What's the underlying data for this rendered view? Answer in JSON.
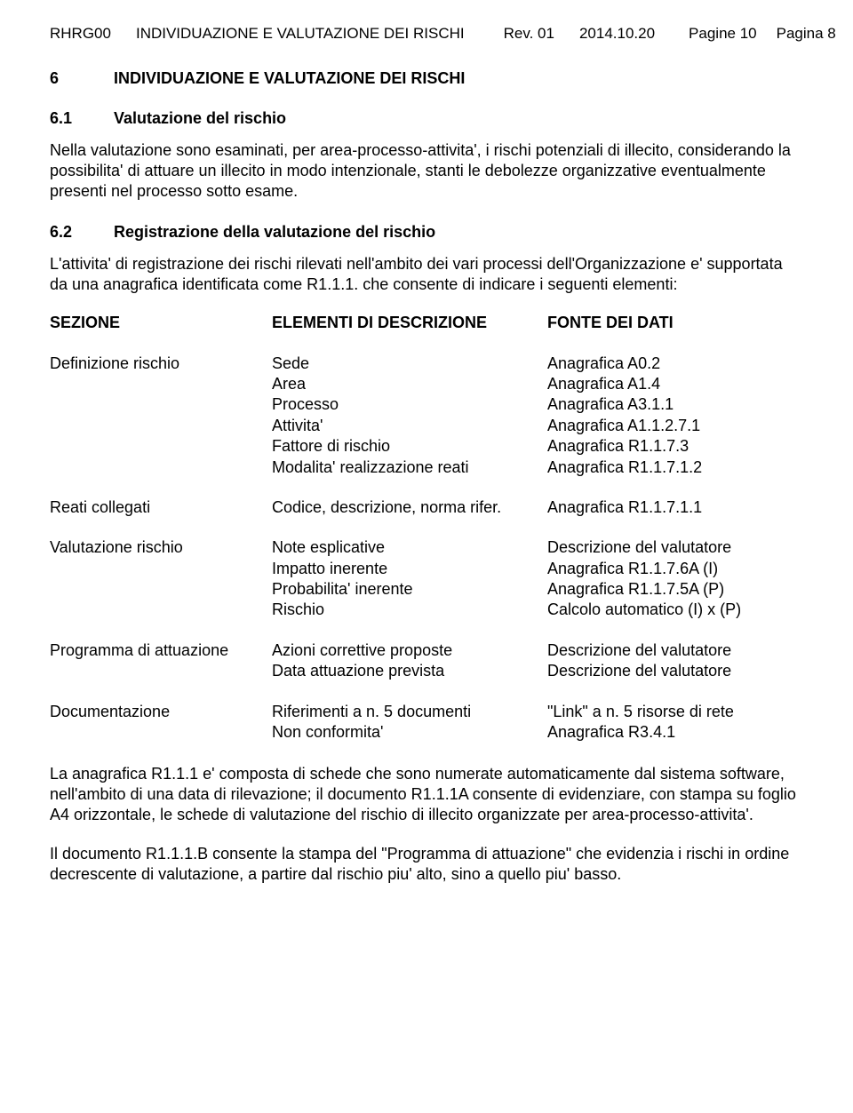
{
  "header": {
    "doc_code": "RHRG00",
    "doc_title": "INDIVIDUAZIONE E VALUTAZIONE DEI RISCHI",
    "rev": "Rev. 01",
    "date": "2014.10.20",
    "pagine": "Pagine 10",
    "pagina": "Pagina 8"
  },
  "section6": {
    "num": "6",
    "title": "INDIVIDUAZIONE E VALUTAZIONE DEI RISCHI"
  },
  "section61": {
    "num": "6.1",
    "title": "Valutazione del rischio",
    "para": "Nella valutazione sono esaminati, per area-processo-attivita', i rischi potenziali di illecito, considerando la possibilita' di attuare un illecito in modo intenzionale, stanti le debolezze organizzative eventualmente presenti nel processo sotto esame."
  },
  "section62": {
    "num": "6.2",
    "title": "Registrazione della valutazione del rischio",
    "para": "L'attivita' di registrazione dei rischi rilevati nell'ambito dei vari processi dell'Organizzazione e' supportata da una anagrafica identificata come R1.1.1. che consente di indicare i seguenti elementi:"
  },
  "table_header": {
    "c1": "SEZIONE",
    "c2": "ELEMENTI DI DESCRIZIONE",
    "c3": "FONTE DEI DATI"
  },
  "groups": [
    {
      "label": "Definizione rischio",
      "rows": [
        {
          "e": "Sede",
          "f": "Anagrafica A0.2"
        },
        {
          "e": "Area",
          "f": "Anagrafica A1.4"
        },
        {
          "e": "Processo",
          "f": "Anagrafica A3.1.1"
        },
        {
          "e": "Attivita'",
          "f": "Anagrafica A1.1.2.7.1"
        },
        {
          "e": "Fattore di rischio",
          "f": "Anagrafica R1.1.7.3"
        },
        {
          "e": "Modalita' realizzazione reati",
          "f": "Anagrafica R1.1.7.1.2"
        }
      ]
    },
    {
      "label": "Reati collegati",
      "rows": [
        {
          "e": "Codice, descrizione, norma rifer.",
          "f": "Anagrafica R1.1.7.1.1"
        }
      ]
    },
    {
      "label": "Valutazione rischio",
      "rows": [
        {
          "e": "Note esplicative",
          "f": "Descrizione del valutatore"
        },
        {
          "e": "Impatto inerente",
          "f": "Anagrafica R1.1.7.6A (I)"
        },
        {
          "e": "Probabilita' inerente",
          "f": "Anagrafica R1.1.7.5A (P)"
        },
        {
          "e": "Rischio",
          "f": "Calcolo automatico  (I) x (P)"
        }
      ]
    },
    {
      "label": "Programma di attuazione",
      "rows": [
        {
          "e": "Azioni correttive proposte",
          "f": "Descrizione del valutatore"
        },
        {
          "e": "Data attuazione prevista",
          "f": "Descrizione del valutatore"
        }
      ]
    },
    {
      "label": "Documentazione",
      "rows": [
        {
          "e": "Riferimenti a n. 5 documenti",
          "f": "\"Link\" a n. 5 risorse di rete"
        },
        {
          "e": "Non conformita'",
          "f": "Anagrafica R3.4.1"
        }
      ]
    }
  ],
  "closing": {
    "p1": "La anagrafica R1.1.1 e' composta di schede che sono numerate automaticamente dal sistema software, nell'ambito di una data di rilevazione; il documento R1.1.1A consente di evidenziare, con stampa su foglio A4 orizzontale, le schede di valutazione del rischio di illecito organizzate per area-processo-attivita'.",
    "p2": "Il documento R1.1.1.B consente la stampa del \"Programma di attuazione\" che evidenzia i rischi in ordine decrescente di valutazione, a partire dal rischio piu' alto, sino a quello piu' basso."
  },
  "colors": {
    "text": "#000000",
    "background": "#ffffff"
  },
  "typography": {
    "body_fontsize_pt": 13,
    "heading_fontsize_pt": 13,
    "font_family": "Arial"
  }
}
